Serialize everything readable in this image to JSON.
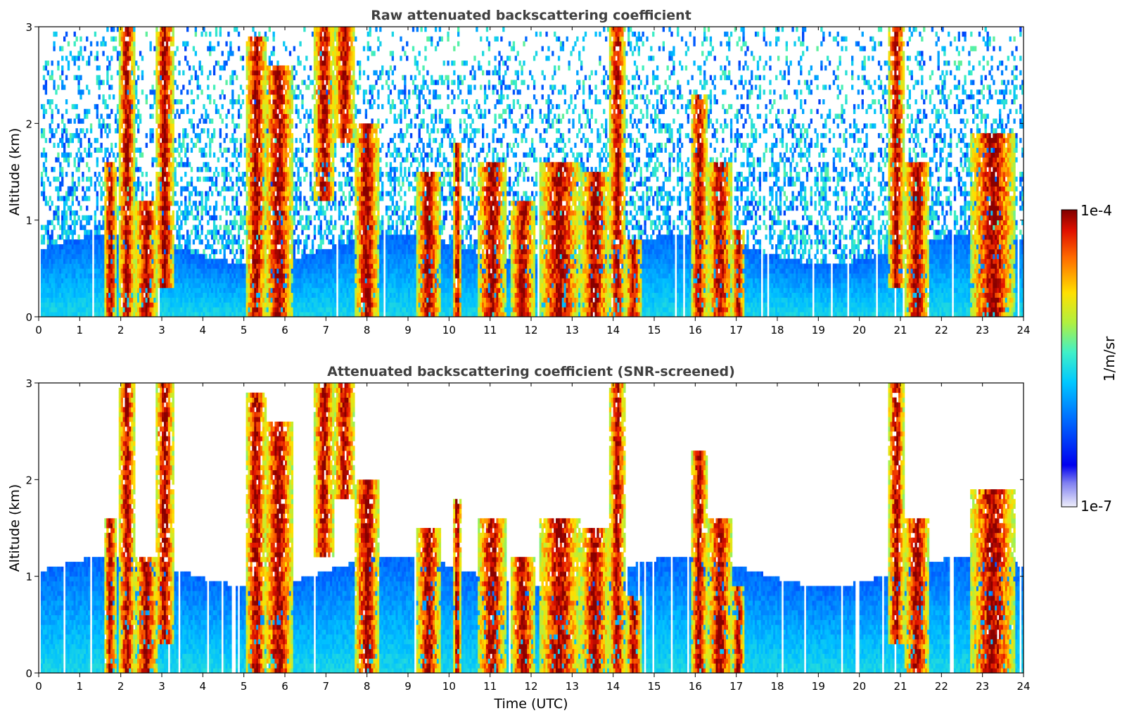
{
  "chart_data": [
    {
      "type": "heatmap",
      "title": "Raw attenuated backscattering coefficient",
      "xlabel": "",
      "ylabel": "Altitude (km)",
      "xlim": [
        0,
        24
      ],
      "ylim": [
        0,
        3
      ],
      "x_ticks": [
        "0",
        "1",
        "2",
        "3",
        "4",
        "5",
        "6",
        "7",
        "8",
        "9",
        "10",
        "11",
        "12",
        "13",
        "14",
        "15",
        "16",
        "17",
        "18",
        "19",
        "20",
        "21",
        "22",
        "23",
        "24"
      ],
      "y_ticks": [
        "0",
        "1",
        "2",
        "3"
      ],
      "colorbar": {
        "label": "1/m/sr",
        "min_label": "1e-7",
        "max_label": "1e-4",
        "scale": "log"
      },
      "cloud_events": [
        {
          "start": 1.6,
          "end": 1.9,
          "bottom": 0.0,
          "top": 1.6
        },
        {
          "start": 1.95,
          "end": 2.35,
          "bottom": 0.0,
          "top": 3.0
        },
        {
          "start": 2.35,
          "end": 2.9,
          "bottom": 0.0,
          "top": 1.2
        },
        {
          "start": 2.85,
          "end": 3.3,
          "bottom": 0.3,
          "top": 3.0
        },
        {
          "start": 5.05,
          "end": 5.55,
          "bottom": 0.0,
          "top": 2.9
        },
        {
          "start": 5.5,
          "end": 6.2,
          "bottom": 0.0,
          "top": 2.6
        },
        {
          "start": 6.7,
          "end": 7.2,
          "bottom": 1.2,
          "top": 3.0
        },
        {
          "start": 7.2,
          "end": 7.7,
          "bottom": 1.8,
          "top": 3.0
        },
        {
          "start": 7.7,
          "end": 8.3,
          "bottom": 0.0,
          "top": 2.0
        },
        {
          "start": 9.2,
          "end": 9.8,
          "bottom": 0.0,
          "top": 1.5
        },
        {
          "start": 10.1,
          "end": 10.3,
          "bottom": 0.0,
          "top": 1.8
        },
        {
          "start": 10.7,
          "end": 11.4,
          "bottom": 0.0,
          "top": 1.6
        },
        {
          "start": 11.5,
          "end": 12.1,
          "bottom": 0.0,
          "top": 1.2
        },
        {
          "start": 12.2,
          "end": 13.2,
          "bottom": 0.0,
          "top": 1.6
        },
        {
          "start": 13.2,
          "end": 13.9,
          "bottom": 0.0,
          "top": 1.5
        },
        {
          "start": 13.9,
          "end": 14.3,
          "bottom": 0.0,
          "top": 3.0
        },
        {
          "start": 14.3,
          "end": 14.7,
          "bottom": 0.0,
          "top": 0.8
        },
        {
          "start": 15.9,
          "end": 16.3,
          "bottom": 0.0,
          "top": 2.3
        },
        {
          "start": 16.3,
          "end": 16.9,
          "bottom": 0.0,
          "top": 1.6
        },
        {
          "start": 16.9,
          "end": 17.2,
          "bottom": 0.0,
          "top": 0.9
        },
        {
          "start": 20.7,
          "end": 21.1,
          "bottom": 0.3,
          "top": 3.0
        },
        {
          "start": 21.1,
          "end": 21.7,
          "bottom": 0.0,
          "top": 1.6
        },
        {
          "start": 22.7,
          "end": 23.8,
          "bottom": 0.0,
          "top": 1.9
        }
      ]
    },
    {
      "type": "heatmap",
      "title": "Attenuated backscattering coefficient (SNR-screened)",
      "xlabel": "Time (UTC)",
      "ylabel": "Altitude (km)",
      "xlim": [
        0,
        24
      ],
      "ylim": [
        0,
        3
      ],
      "x_ticks": [
        "0",
        "1",
        "2",
        "3",
        "4",
        "5",
        "6",
        "7",
        "8",
        "9",
        "10",
        "11",
        "12",
        "13",
        "14",
        "15",
        "16",
        "17",
        "18",
        "19",
        "20",
        "21",
        "22",
        "23",
        "24"
      ],
      "y_ticks": [
        "0",
        "1",
        "2",
        "3"
      ],
      "screened_aerosol_top_km": 1.05
    }
  ],
  "colors": {
    "axes": "#000000",
    "title": "#404040",
    "colormap": [
      "#e6e6f5",
      "#0000f0",
      "#0060ff",
      "#00c0ff",
      "#40f0c0",
      "#b0f040",
      "#ffe000",
      "#ff7000",
      "#e01000",
      "#800000"
    ]
  }
}
